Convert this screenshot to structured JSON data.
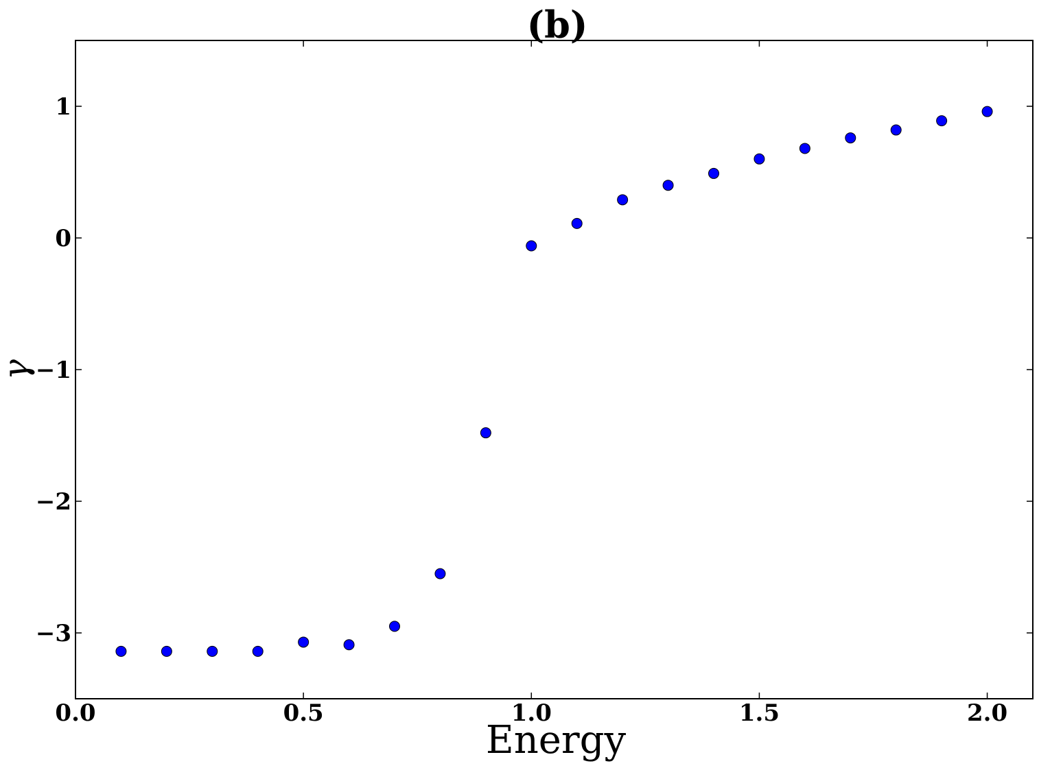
{
  "chart_data": {
    "type": "scatter",
    "title": "(b)",
    "xlabel": "Energy",
    "ylabel": "γ",
    "xlim": [
      0.0,
      2.1
    ],
    "ylim": [
      -3.5,
      1.5
    ],
    "xticks": [
      0.0,
      0.5,
      1.0,
      1.5,
      2.0
    ],
    "xtick_labels": [
      "0.0",
      "0.5",
      "1.0",
      "1.5",
      "2.0"
    ],
    "yticks": [
      -3,
      -2,
      -1,
      0,
      1
    ],
    "ytick_labels": [
      "−3",
      "−2",
      "−1",
      "0",
      "1"
    ],
    "grid": false,
    "marker_color": "#0000ff",
    "series": [
      {
        "x": [
          0.1,
          0.2,
          0.3,
          0.4,
          0.5,
          0.6,
          0.7,
          0.8,
          0.9,
          1.0,
          1.1,
          1.2,
          1.3,
          1.4,
          1.5,
          1.6,
          1.7,
          1.8,
          1.9,
          2.0
        ],
        "y": [
          -3.14,
          -3.14,
          -3.14,
          -3.14,
          -3.07,
          -3.09,
          -2.95,
          -2.55,
          -1.48,
          -0.06,
          0.11,
          0.29,
          0.4,
          0.49,
          0.6,
          0.68,
          0.76,
          0.82,
          0.89,
          0.96
        ]
      }
    ]
  }
}
